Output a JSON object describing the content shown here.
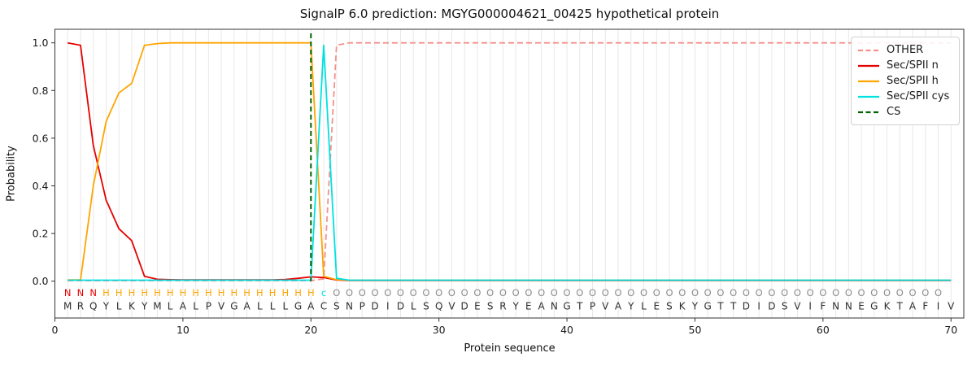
{
  "window": {
    "title": "SignalP 6.0 prediction: MGYG000004621_00425 hypothetical protein"
  },
  "chart_data": {
    "type": "line",
    "title": "SignalP 6.0 prediction: MGYG000004621_00425 hypothetical protein",
    "xlabel": "Protein sequence",
    "ylabel": "Probability",
    "xlim": [
      0,
      71
    ],
    "ylim": [
      -0.155,
      1.057
    ],
    "x_ticks": [
      0,
      10,
      20,
      30,
      40,
      50,
      60,
      70
    ],
    "y_ticks": [
      0.0,
      0.2,
      0.4,
      0.6,
      0.8,
      1.0
    ],
    "grid": "vertical gridlines at every residue position 1-70",
    "legend_position": "upper right",
    "colors": {
      "grid": "#e8e8e8",
      "spine": "#333333",
      "tick_text": "#1a1a1a",
      "sequence_text": "#2e2e2e",
      "region_N": "#e60000",
      "region_H": "#ffa500",
      "region_c": "#00e1e1",
      "region_O": "#8c8c8c"
    },
    "sequence": "MRQYLKYMLALPVGALLLGACSNPDIDLSQVDESRYEANGTPVAYLESKYGTTDIDSVIFNNEGKTAFIV",
    "region_labels": "NNNHHHHHHHHHHHHHHHHHcOOOOOOOOOOOOOOOOOOOOOOOOOOOOOOOOOOOOOOOOOOOOOOOO",
    "cs_line": {
      "label": "CS",
      "x": 20,
      "color": "#006400",
      "dashed": true
    },
    "series": [
      {
        "name": "OTHER",
        "color": "#f4918b",
        "dashed": true,
        "values": [
          0.002,
          0.002,
          0.002,
          0.002,
          0.002,
          0.002,
          0.002,
          0.002,
          0.002,
          0.002,
          0.002,
          0.002,
          0.002,
          0.002,
          0.002,
          0.002,
          0.002,
          0.002,
          0.002,
          0.002,
          0.01,
          0.99,
          1.0,
          1.0,
          1.0,
          1.0,
          1.0,
          1.0,
          1.0,
          1.0,
          1.0,
          1.0,
          1.0,
          1.0,
          1.0,
          1.0,
          1.0,
          1.0,
          1.0,
          1.0,
          1.0,
          1.0,
          1.0,
          1.0,
          1.0,
          1.0,
          1.0,
          1.0,
          1.0,
          1.0,
          1.0,
          1.0,
          1.0,
          1.0,
          1.0,
          1.0,
          1.0,
          1.0,
          1.0,
          1.0,
          1.0,
          1.0,
          1.0,
          1.0,
          1.0,
          1.0,
          1.0,
          1.0,
          1.0,
          1.0
        ]
      },
      {
        "name": "Sec/SPII n",
        "color": "#e60000",
        "dashed": false,
        "values": [
          1.0,
          0.99,
          0.57,
          0.34,
          0.22,
          0.17,
          0.02,
          0.008,
          0.006,
          0.005,
          0.005,
          0.005,
          0.005,
          0.005,
          0.005,
          0.005,
          0.005,
          0.007,
          0.012,
          0.018,
          0.015,
          0.005,
          0.003,
          0.003,
          0.003,
          0.003,
          0.003,
          0.003,
          0.003,
          0.003,
          0.003,
          0.003,
          0.003,
          0.003,
          0.003,
          0.003,
          0.003,
          0.003,
          0.003,
          0.003,
          0.003,
          0.003,
          0.003,
          0.003,
          0.003,
          0.003,
          0.003,
          0.003,
          0.003,
          0.003,
          0.003,
          0.003,
          0.003,
          0.003,
          0.003,
          0.003,
          0.003,
          0.003,
          0.003,
          0.003,
          0.003,
          0.003,
          0.003,
          0.003,
          0.003,
          0.003,
          0.003,
          0.003,
          0.003,
          0.003
        ]
      },
      {
        "name": "Sec/SPII h",
        "color": "#ffa500",
        "dashed": false,
        "values": [
          0.005,
          0.005,
          0.4,
          0.67,
          0.79,
          0.83,
          0.99,
          0.997,
          1.0,
          1.0,
          1.0,
          1.0,
          1.0,
          1.0,
          1.0,
          1.0,
          1.0,
          1.0,
          1.0,
          1.0,
          0.02,
          0.006,
          0.004,
          0.004,
          0.004,
          0.004,
          0.004,
          0.004,
          0.004,
          0.004,
          0.004,
          0.004,
          0.004,
          0.004,
          0.004,
          0.004,
          0.004,
          0.004,
          0.004,
          0.004,
          0.004,
          0.004,
          0.004,
          0.004,
          0.004,
          0.004,
          0.004,
          0.004,
          0.004,
          0.004,
          0.004,
          0.004,
          0.004,
          0.004,
          0.004,
          0.004,
          0.004,
          0.004,
          0.004,
          0.004,
          0.004,
          0.004,
          0.004,
          0.004,
          0.004,
          0.004,
          0.004,
          0.004,
          0.004,
          0.004
        ]
      },
      {
        "name": "Sec/SPII cys",
        "color": "#00e1e1",
        "dashed": false,
        "values": [
          0.004,
          0.004,
          0.004,
          0.004,
          0.004,
          0.004,
          0.004,
          0.004,
          0.004,
          0.004,
          0.004,
          0.004,
          0.004,
          0.004,
          0.004,
          0.004,
          0.004,
          0.004,
          0.004,
          0.004,
          0.99,
          0.012,
          0.004,
          0.004,
          0.004,
          0.004,
          0.004,
          0.004,
          0.004,
          0.004,
          0.004,
          0.004,
          0.004,
          0.004,
          0.004,
          0.004,
          0.004,
          0.004,
          0.004,
          0.004,
          0.004,
          0.004,
          0.004,
          0.004,
          0.004,
          0.004,
          0.004,
          0.004,
          0.004,
          0.004,
          0.004,
          0.004,
          0.004,
          0.004,
          0.004,
          0.004,
          0.004,
          0.004,
          0.004,
          0.004,
          0.004,
          0.004,
          0.004,
          0.004,
          0.004,
          0.004,
          0.004,
          0.004,
          0.004,
          0.004
        ]
      }
    ],
    "legend": [
      {
        "label": "OTHER",
        "color": "#f4918b",
        "dashed": true
      },
      {
        "label": "Sec/SPII n",
        "color": "#e60000",
        "dashed": false
      },
      {
        "label": "Sec/SPII h",
        "color": "#ffa500",
        "dashed": false
      },
      {
        "label": "Sec/SPII cys",
        "color": "#00e1e1",
        "dashed": false
      },
      {
        "label": "CS",
        "color": "#006400",
        "dashed": true
      }
    ]
  }
}
